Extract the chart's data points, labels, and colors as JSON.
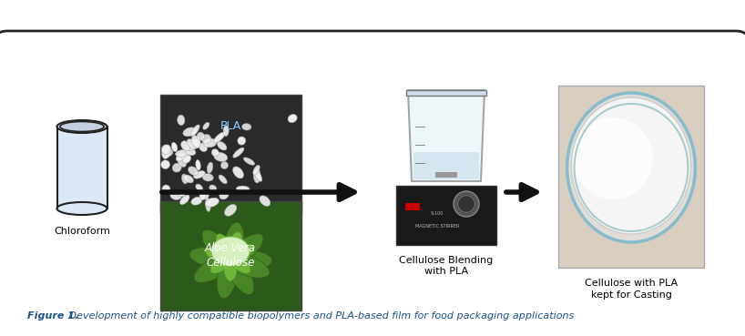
{
  "figure_caption_bold": "Figure 1.",
  "figure_caption_rest": " Development of highly compatible biopolymers and PLA-based film for food packaging applications",
  "caption_color": "#1a4f8a",
  "caption_fontsize": 8.0,
  "background_color": "#ffffff",
  "border_color": "#222222",
  "arrow_color": "#111111",
  "labels": {
    "chloroform": "Chloroform",
    "pla": "PLA",
    "aloe_vera_line1": "Aloe Vera",
    "aloe_vera_line2": "Cellulose",
    "blending_line1": "Cellulose Blending",
    "blending_line2": "with PLA",
    "casting_line1": "Cellulose with PLA",
    "casting_line2": "kept for Casting"
  }
}
